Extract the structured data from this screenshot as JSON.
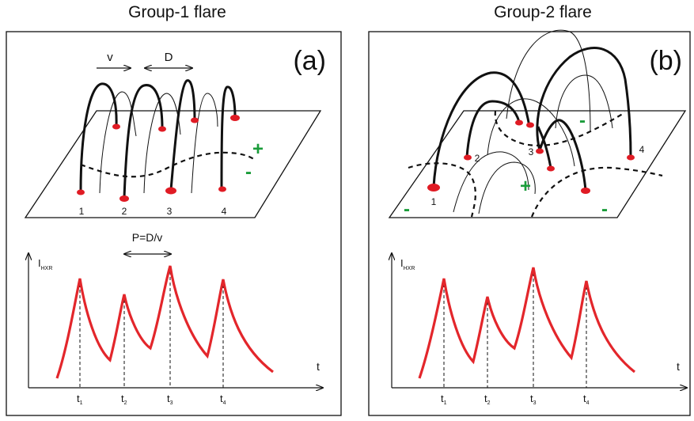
{
  "panel_a": {
    "title": "Group-1 flare",
    "tag": "(a)",
    "arrow_v": "v",
    "arrow_d": "D",
    "footpoints": [
      "1",
      "2",
      "3",
      "4"
    ],
    "signs": [
      "+",
      "-"
    ],
    "period_label": "P=D/v",
    "ylabel_main": "I",
    "ylabel_sub": "HXR",
    "xlabel": "t",
    "ticks": [
      {
        "main": "t",
        "sub": "1"
      },
      {
        "main": "t",
        "sub": "2"
      },
      {
        "main": "t",
        "sub": "3"
      },
      {
        "main": "t",
        "sub": "4"
      }
    ]
  },
  "panel_b": {
    "title": "Group-2 flare",
    "tag": "(b)",
    "footpoints": [
      "1",
      "2",
      "3",
      "4"
    ],
    "signs": [
      "-",
      "-",
      "+",
      "-",
      "-"
    ],
    "ylabel_main": "I",
    "ylabel_sub": "HXR",
    "xlabel": "t",
    "ticks": [
      {
        "main": "t",
        "sub": "1"
      },
      {
        "main": "t",
        "sub": "2"
      },
      {
        "main": "t",
        "sub": "3"
      },
      {
        "main": "t",
        "sub": "4"
      }
    ]
  },
  "colors": {
    "footpoint": "#e01b24",
    "curve": "#e3262b",
    "polarity": "#1a9c3a"
  }
}
